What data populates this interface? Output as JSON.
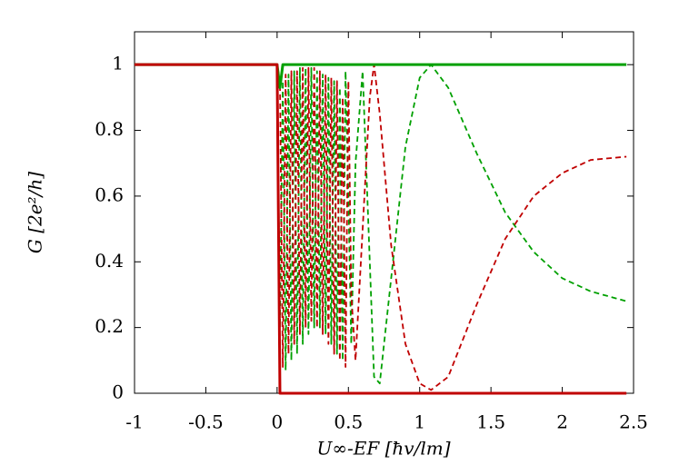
{
  "chart_data": {
    "type": "line",
    "x_label": "U∞-EF  [ħv/lm]",
    "y_label": "G  [2e²/h]",
    "x": [
      -1,
      -0.5,
      0,
      0.02,
      0.04,
      0.06,
      0.08,
      0.1,
      0.12,
      0.14,
      0.16,
      0.18,
      0.2,
      0.22,
      0.24,
      0.26,
      0.28,
      0.3,
      0.32,
      0.34,
      0.36,
      0.38,
      0.4,
      0.42,
      0.44,
      0.46,
      0.48,
      0.5,
      0.52,
      0.55,
      0.6,
      0.65,
      0.68,
      0.72,
      0.8,
      0.9,
      1.0,
      1.08,
      1.2,
      1.4,
      1.6,
      1.8,
      2.0,
      2.2,
      2.45
    ],
    "series": [
      {
        "color": "#00a000",
        "dashed": true,
        "values": [
          1,
          1,
          1,
          0.2,
          0.95,
          0.07,
          0.97,
          0.1,
          0.98,
          0.12,
          0.99,
          0.15,
          0.99,
          0.18,
          0.99,
          0.2,
          0.98,
          0.2,
          0.97,
          0.18,
          0.96,
          0.15,
          0.95,
          0.12,
          0.93,
          0.1,
          0.98,
          0.6,
          0.15,
          0.7,
          0.98,
          0.4,
          0.05,
          0.03,
          0.35,
          0.75,
          0.96,
          1.0,
          0.93,
          0.73,
          0.55,
          0.43,
          0.35,
          0.31,
          0.28
        ]
      },
      {
        "color": "#c00000",
        "dashed": true,
        "values": [
          1,
          1,
          1,
          0.95,
          0.08,
          0.97,
          0.12,
          0.98,
          0.15,
          0.98,
          0.18,
          0.99,
          0.2,
          0.99,
          0.22,
          0.99,
          0.2,
          0.98,
          0.18,
          0.97,
          0.15,
          0.96,
          0.12,
          0.95,
          0.1,
          0.9,
          0.08,
          0.95,
          0.3,
          0.1,
          0.5,
          0.9,
          1.0,
          0.85,
          0.45,
          0.15,
          0.03,
          0.01,
          0.05,
          0.27,
          0.47,
          0.6,
          0.67,
          0.71,
          0.72
        ]
      },
      {
        "color": "#00a000",
        "dashed": false,
        "values": [
          1,
          1,
          1,
          0.93,
          1,
          1,
          1,
          1,
          1,
          1,
          1,
          1,
          1,
          1,
          1,
          1,
          1,
          1,
          1,
          1,
          1,
          1,
          1,
          1,
          1,
          1,
          1,
          1,
          1,
          1,
          1,
          1,
          1,
          1,
          1,
          1,
          1,
          1,
          1,
          1,
          1,
          1,
          1,
          1,
          1
        ]
      },
      {
        "color": "#c00000",
        "dashed": false,
        "values": [
          1,
          1,
          1,
          0,
          0,
          0,
          0,
          0,
          0,
          0,
          0,
          0,
          0,
          0,
          0,
          0,
          0,
          0,
          0,
          0,
          0,
          0,
          0,
          0,
          0,
          0,
          0,
          0,
          0,
          0,
          0,
          0,
          0,
          0,
          0,
          0,
          0,
          0,
          0,
          0,
          0,
          0,
          0,
          0,
          0
        ]
      }
    ],
    "xlim": [
      -1,
      2.5
    ],
    "ylim": [
      0,
      1.1
    ],
    "xticks": [
      -1,
      -0.5,
      0,
      0.5,
      1,
      1.5,
      2,
      2.5
    ],
    "yticks": [
      0,
      0.2,
      0.4,
      0.6,
      0.8,
      1
    ],
    "grid": false
  }
}
